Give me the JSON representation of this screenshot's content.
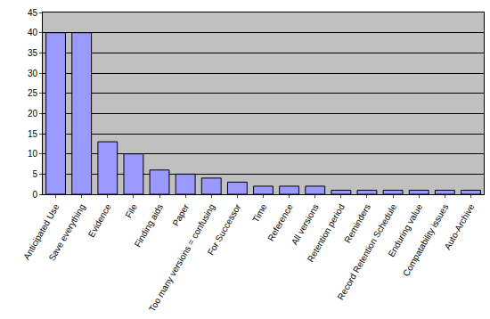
{
  "chart_data": {
    "type": "bar",
    "categories": [
      "Anticipated Use",
      "Save everything",
      "Evidence",
      "File",
      "Finding aids",
      "Paper",
      "Too many versions = confusing",
      "For Successor",
      "Time",
      "Reference",
      "All versions",
      "Retention period",
      "Reminders",
      "Record Retention Schedule",
      "Enduring value",
      "Compatability issues",
      "Auto-Archive"
    ],
    "values": [
      40,
      40,
      13,
      10,
      6,
      5,
      4,
      3,
      2,
      2,
      2,
      1,
      1,
      1,
      1,
      1,
      1
    ],
    "color": "#9999ff",
    "ylim": [
      0,
      45
    ],
    "yticks": [
      0,
      5,
      10,
      15,
      20,
      25,
      30,
      35,
      40,
      45
    ],
    "grid": true
  }
}
